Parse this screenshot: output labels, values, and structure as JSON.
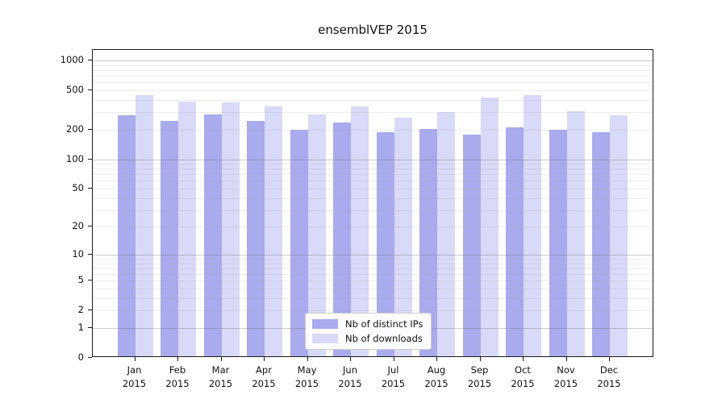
{
  "title": "ensemblVEP 2015",
  "chart_data": {
    "type": "bar",
    "title": "ensemblVEP 2015",
    "categories": [
      "Jan 2015",
      "Feb 2015",
      "Mar 2015",
      "Apr 2015",
      "May 2015",
      "Jun 2015",
      "Jul 2015",
      "Aug 2015",
      "Sep 2015",
      "Oct 2015",
      "Nov 2015",
      "Dec 2015"
    ],
    "x_tick_labels": [
      {
        "line1": "Jan",
        "line2": "2015"
      },
      {
        "line1": "Feb",
        "line2": "2015"
      },
      {
        "line1": "Mar",
        "line2": "2015"
      },
      {
        "line1": "Apr",
        "line2": "2015"
      },
      {
        "line1": "May",
        "line2": "2015"
      },
      {
        "line1": "Jun",
        "line2": "2015"
      },
      {
        "line1": "Jul",
        "line2": "2015"
      },
      {
        "line1": "Aug",
        "line2": "2015"
      },
      {
        "line1": "Sep",
        "line2": "2015"
      },
      {
        "line1": "Oct",
        "line2": "2015"
      },
      {
        "line1": "Nov",
        "line2": "2015"
      },
      {
        "line1": "Dec",
        "line2": "2015"
      }
    ],
    "series": [
      {
        "name": "Nb of distinct IPs",
        "color": "#aaaaee",
        "values": [
          268,
          236,
          276,
          238,
          193,
          225,
          180,
          195,
          171,
          203,
          190,
          182
        ]
      },
      {
        "name": "Nb of downloads",
        "color": "#d9d9f8",
        "values": [
          434,
          372,
          362,
          328,
          275,
          330,
          252,
          289,
          410,
          428,
          297,
          268
        ]
      }
    ],
    "yscale": "log10(value+1)",
    "yticks": [
      1000,
      500,
      200,
      100,
      50,
      20,
      10,
      5,
      2,
      1,
      0
    ],
    "ylim": [
      0,
      1275
    ],
    "grid": "on",
    "legend_position": "inside lower-center"
  },
  "legend": {
    "items": [
      {
        "label": "Nb of distinct IPs",
        "color": "#aaaaee"
      },
      {
        "label": "Nb of downloads",
        "color": "#d9d9f8"
      }
    ]
  },
  "colors": {
    "distinct_ips": "#aaaaee",
    "downloads": "#d9d9f8",
    "spine": "#1a1a1a",
    "grid_major": "#c9c9cd",
    "grid_minor": "#e9e9ec"
  }
}
